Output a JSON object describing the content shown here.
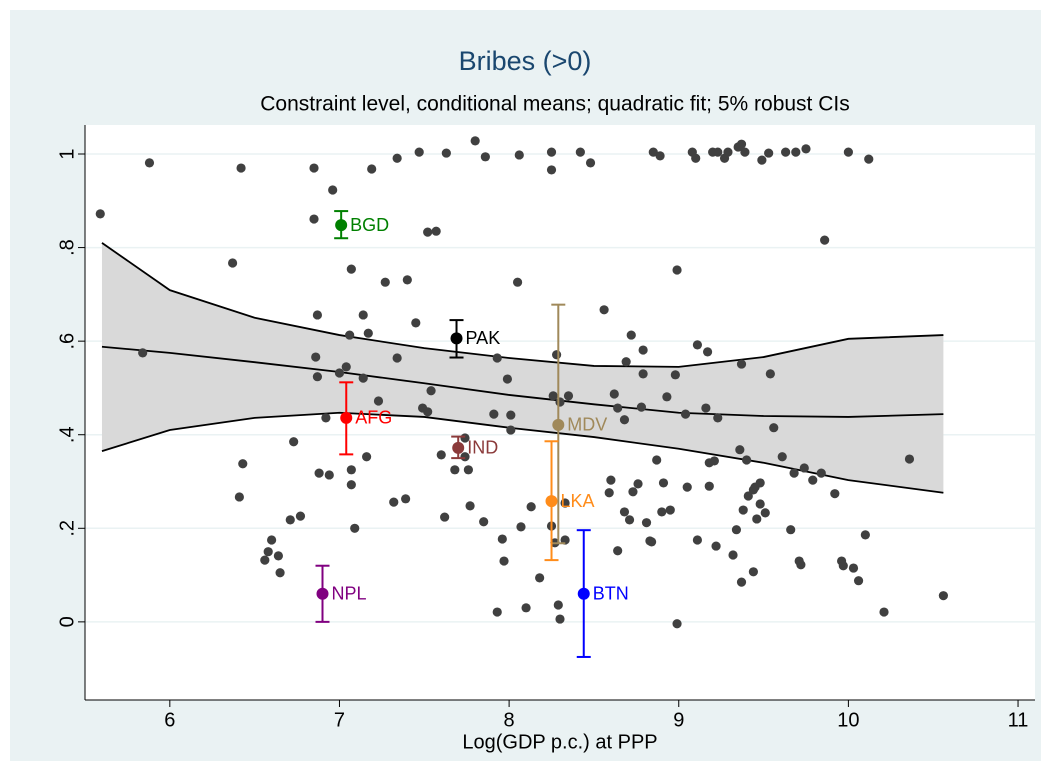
{
  "chart_data": {
    "type": "scatter",
    "title": "Bribes (>0)",
    "subtitle": "Constraint level, conditional means; quadratic fit; 5% robust CIs",
    "x_label": "Log(GDP p.c.) at PPP",
    "xlim": [
      5.5,
      11.1
    ],
    "ylim": [
      -0.167,
      1.062
    ],
    "xticks": [
      6,
      7,
      8,
      9,
      10,
      11
    ],
    "yticks": [
      {
        "value": 0,
        "label": "0"
      },
      {
        "value": 0.2,
        "label": ".2"
      },
      {
        "value": 0.4,
        "label": ".4"
      },
      {
        "value": 0.6,
        "label": ".6"
      },
      {
        "value": 0.8,
        "label": ".8"
      },
      {
        "value": 1,
        "label": "1"
      }
    ],
    "grid": true,
    "point_color": "#404040",
    "x": [
      5.59,
      5.88,
      5.84,
      6.42,
      6.37,
      6.43,
      6.41,
      6.56,
      6.6,
      6.58,
      6.64,
      6.65,
      6.71,
      6.77,
      6.73,
      6.85,
      6.85,
      6.87,
      6.86,
      6.87,
      6.88,
      6.94,
      6.96,
      6.92,
      7.0,
      7.04,
      7.06,
      7.07,
      7.07,
      7.07,
      7.09,
      7.14,
      7.14,
      7.17,
      7.16,
      7.19,
      7.23,
      7.27,
      7.34,
      7.34,
      7.32,
      7.39,
      7.4,
      7.45,
      7.47,
      7.49,
      7.52,
      7.57,
      7.54,
      7.52,
      7.6,
      7.62,
      7.63,
      7.68,
      7.74,
      7.76,
      7.74,
      7.77,
      7.8,
      7.86,
      7.85,
      7.93,
      7.91,
      7.96,
      7.97,
      7.93,
      7.99,
      8.01,
      8.01,
      8.05,
      8.06,
      8.07,
      8.1,
      8.13,
      8.18,
      8.25,
      8.26,
      8.28,
      8.25,
      8.27,
      8.29,
      8.3,
      8.3,
      8.35,
      8.33,
      8.33,
      8.25,
      8.42,
      8.48,
      8.56,
      8.59,
      8.6,
      8.64,
      8.62,
      8.64,
      8.68,
      8.69,
      8.72,
      8.68,
      8.71,
      8.73,
      8.76,
      8.79,
      8.79,
      8.78,
      8.81,
      8.83,
      8.85,
      8.89,
      8.84,
      8.87,
      8.91,
      8.9,
      8.95,
      8.93,
      8.99,
      8.98,
      8.99,
      9.04,
      9.05,
      9.08,
      9.1,
      9.11,
      9.11,
      9.17,
      9.16,
      9.18,
      9.21,
      9.18,
      9.23,
      9.22,
      9.23,
      9.2,
      9.29,
      9.35,
      9.39,
      9.37,
      9.27,
      9.34,
      9.32,
      9.36,
      9.38,
      9.37,
      9.37,
      9.4,
      9.41,
      9.44,
      9.44,
      9.45,
      9.48,
      9.49,
      9.46,
      9.48,
      9.53,
      9.51,
      9.54,
      9.56,
      9.63,
      9.66,
      9.61,
      9.68,
      9.69,
      9.71,
      9.72,
      9.74,
      9.75,
      9.79,
      9.84,
      9.86,
      9.92,
      10.0,
      9.96,
      9.97,
      10.03,
      10.06,
      10.1,
      10.12,
      10.21,
      10.36,
      10.56
    ],
    "y": [
      0.872,
      0.981,
      0.575,
      0.97,
      0.767,
      0.338,
      0.267,
      0.132,
      0.175,
      0.15,
      0.141,
      0.105,
      0.218,
      0.226,
      0.385,
      0.97,
      0.861,
      0.656,
      0.566,
      0.524,
      0.318,
      0.314,
      0.923,
      0.436,
      0.532,
      0.545,
      0.613,
      0.754,
      0.325,
      0.293,
      0.2,
      0.656,
      0.521,
      0.617,
      0.353,
      0.968,
      0.472,
      0.726,
      0.991,
      0.564,
      0.256,
      0.263,
      0.731,
      0.639,
      1.004,
      0.457,
      0.833,
      0.835,
      0.494,
      0.449,
      0.357,
      0.224,
      1.002,
      0.325,
      0.353,
      0.325,
      0.393,
      0.248,
      1.028,
      0.994,
      0.214,
      0.564,
      0.444,
      0.177,
      0.13,
      0.021,
      0.519,
      0.442,
      0.41,
      0.726,
      0.998,
      0.203,
      0.03,
      0.246,
      0.094,
      0.966,
      0.483,
      0.571,
      0.205,
      0.169,
      0.036,
      0.006,
      0.47,
      0.483,
      0.254,
      0.175,
      1.004,
      1.004,
      0.981,
      0.667,
      0.276,
      0.303,
      0.152,
      0.487,
      0.457,
      0.432,
      0.556,
      0.613,
      0.235,
      0.218,
      0.278,
      0.295,
      0.581,
      0.53,
      0.459,
      0.212,
      0.173,
      1.004,
      0.996,
      0.171,
      0.346,
      0.297,
      0.235,
      0.239,
      0.481,
      0.752,
      0.528,
      -0.004,
      0.444,
      0.288,
      1.004,
      0.991,
      0.592,
      0.175,
      0.577,
      0.457,
      0.34,
      0.344,
      0.29,
      0.436,
      0.162,
      1.004,
      1.004,
      1.004,
      1.015,
      1.004,
      1.021,
      0.991,
      0.197,
      0.143,
      0.368,
      0.239,
      0.085,
      0.551,
      0.346,
      0.269,
      0.282,
      0.107,
      0.288,
      0.297,
      0.987,
      0.22,
      0.252,
      1.002,
      0.233,
      0.53,
      0.415,
      1.004,
      0.197,
      0.353,
      0.318,
      1.004,
      0.13,
      0.122,
      0.329,
      1.011,
      0.303,
      0.318,
      0.816,
      0.274,
      1.004,
      0.13,
      0.12,
      0.115,
      0.088,
      0.186,
      0.989,
      0.021,
      0.348,
      0.056
    ],
    "fit": {
      "x": [
        5.6,
        6,
        6.5,
        7,
        7.5,
        8,
        8.5,
        9,
        9.5,
        10,
        10.56
      ],
      "y": [
        0.588,
        0.575,
        0.555,
        0.534,
        0.51,
        0.485,
        0.465,
        0.447,
        0.44,
        0.438,
        0.444
      ],
      "lower": [
        0.365,
        0.41,
        0.436,
        0.447,
        0.438,
        0.415,
        0.395,
        0.37,
        0.34,
        0.303,
        0.276
      ],
      "upper": [
        0.81,
        0.709,
        0.65,
        0.613,
        0.585,
        0.564,
        0.547,
        0.545,
        0.566,
        0.605,
        0.613
      ]
    },
    "countries": [
      {
        "label": "BGD",
        "color": "#008000",
        "x": 7.01,
        "y": 0.848,
        "lo": 0.82,
        "hi": 0.878
      },
      {
        "label": "PAK",
        "color": "#000000",
        "x": 7.69,
        "y": 0.606,
        "lo": 0.565,
        "hi": 0.645
      },
      {
        "label": "AFG",
        "color": "#ff0000",
        "x": 7.04,
        "y": 0.436,
        "lo": 0.358,
        "hi": 0.512
      },
      {
        "label": "IND",
        "color": "#8b3a3a",
        "x": 7.7,
        "y": 0.372,
        "lo": 0.35,
        "hi": 0.396
      },
      {
        "label": "MDV",
        "color": "#a0895a",
        "x": 8.29,
        "y": 0.421,
        "lo": 0.168,
        "hi": 0.678
      },
      {
        "label": "LKA",
        "color": "#ff8c1a",
        "x": 8.25,
        "y": 0.258,
        "lo": 0.132,
        "hi": 0.386
      },
      {
        "label": "BTN",
        "color": "#0000ff",
        "x": 8.44,
        "y": 0.06,
        "lo": -0.075,
        "hi": 0.196
      },
      {
        "label": "NPL",
        "color": "#800080",
        "x": 6.9,
        "y": 0.06,
        "lo": 0.0,
        "hi": 0.12
      }
    ]
  }
}
